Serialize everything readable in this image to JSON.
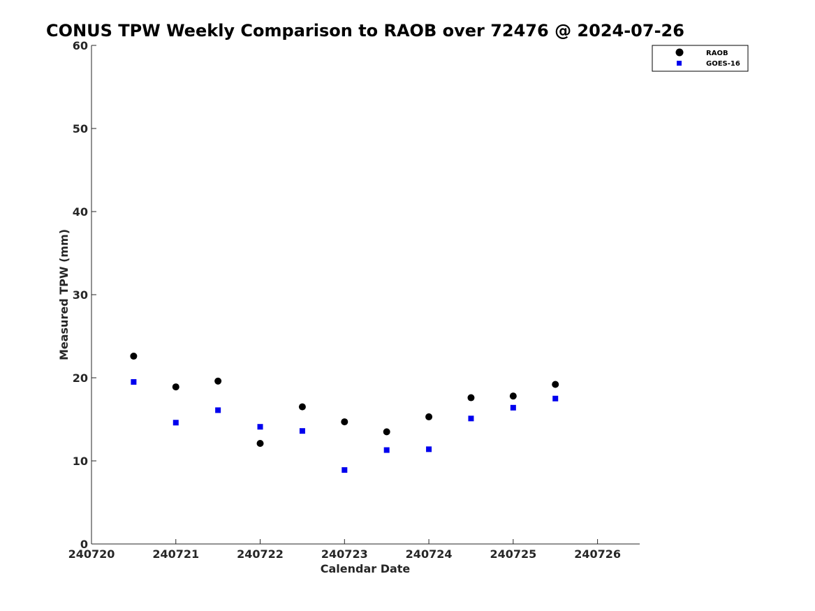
{
  "chart_data": {
    "type": "scatter",
    "title": "CONUS TPW Weekly Comparison to RAOB over 72476 @ 2024-07-26",
    "xlabel": "Calendar Date",
    "ylabel": "Measured TPW (mm)",
    "xlim": [
      240720,
      240726.5
    ],
    "ylim": [
      0,
      60
    ],
    "x_ticks": [
      240720,
      240721,
      240722,
      240723,
      240724,
      240725,
      240726
    ],
    "x_tick_labels": [
      "240720",
      "240721",
      "240722",
      "240723",
      "240724",
      "240725",
      "240726"
    ],
    "y_ticks": [
      0,
      10,
      20,
      30,
      40,
      50,
      60
    ],
    "y_tick_labels": [
      "0",
      "10",
      "20",
      "30",
      "40",
      "50",
      "60"
    ],
    "grid": false,
    "legend_position": "top-right",
    "series": [
      {
        "name": "RAOB",
        "marker": "circle",
        "color": "#000000",
        "x": [
          240720.5,
          240721,
          240721.5,
          240722,
          240722.5,
          240723,
          240723.5,
          240724,
          240724.5,
          240725,
          240725.5
        ],
        "y": [
          22.6,
          18.9,
          19.6,
          12.1,
          16.5,
          14.7,
          13.5,
          15.3,
          17.6,
          17.8,
          19.2
        ]
      },
      {
        "name": "GOES-16",
        "marker": "square",
        "color": "#0000ee",
        "x": [
          240720.5,
          240721,
          240721.5,
          240722,
          240722.5,
          240723,
          240723.5,
          240724,
          240724.5,
          240725,
          240725.5
        ],
        "y": [
          19.5,
          14.6,
          16.1,
          14.1,
          13.6,
          8.9,
          11.3,
          11.4,
          15.1,
          16.4,
          17.5
        ]
      }
    ]
  }
}
